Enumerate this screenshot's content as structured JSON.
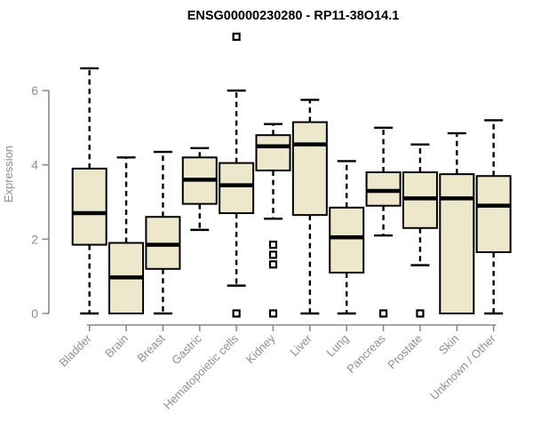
{
  "chart_data": {
    "type": "boxplot",
    "title": "ENSG00000230280 - RP11-38O14.1",
    "ylabel": "Expression",
    "xlabel": "",
    "ylim": [
      0,
      6
    ],
    "yticks": [
      0,
      2,
      4,
      6
    ],
    "grid": false,
    "legend": "none",
    "categories": [
      "Bladder",
      "Brain",
      "Breast",
      "Gastric",
      "Hematopoietic cells",
      "Kidney",
      "Liver",
      "Lung",
      "Pancreas",
      "Prostate",
      "Skin",
      "Unknown / Other"
    ],
    "series": [
      {
        "name": "Bladder",
        "whisker_low": 0,
        "q1": 1.85,
        "median": 2.7,
        "q3": 3.9,
        "whisker_high": 6.6,
        "outliers": []
      },
      {
        "name": "Brain",
        "whisker_low": 0,
        "q1": 0,
        "median": 0.97,
        "q3": 1.9,
        "whisker_high": 4.2,
        "outliers": []
      },
      {
        "name": "Breast",
        "whisker_low": 0,
        "q1": 1.2,
        "median": 1.85,
        "q3": 2.6,
        "whisker_high": 4.35,
        "outliers": []
      },
      {
        "name": "Gastric",
        "whisker_low": 2.25,
        "q1": 2.95,
        "median": 3.6,
        "q3": 4.2,
        "whisker_high": 4.45,
        "outliers": []
      },
      {
        "name": "Hematopoietic cells",
        "whisker_low": 0.75,
        "q1": 2.7,
        "median": 3.45,
        "q3": 4.05,
        "whisker_high": 6.0,
        "outliers": [
          7.45,
          0
        ]
      },
      {
        "name": "Kidney",
        "whisker_low": 2.55,
        "q1": 3.85,
        "median": 4.5,
        "q3": 4.8,
        "whisker_high": 5.1,
        "outliers": [
          1.85,
          1.58,
          1.32,
          0
        ]
      },
      {
        "name": "Liver",
        "whisker_low": 0,
        "q1": 2.65,
        "median": 4.55,
        "q3": 5.15,
        "whisker_high": 5.75,
        "outliers": []
      },
      {
        "name": "Lung",
        "whisker_low": 0,
        "q1": 1.1,
        "median": 2.05,
        "q3": 2.85,
        "whisker_high": 4.1,
        "outliers": []
      },
      {
        "name": "Pancreas",
        "whisker_low": 2.1,
        "q1": 2.9,
        "median": 3.3,
        "q3": 3.8,
        "whisker_high": 5.0,
        "outliers": [
          0
        ]
      },
      {
        "name": "Prostate",
        "whisker_low": 1.3,
        "q1": 2.3,
        "median": 3.1,
        "q3": 3.8,
        "whisker_high": 4.55,
        "outliers": [
          0
        ]
      },
      {
        "name": "Skin",
        "whisker_low": 0,
        "q1": 0,
        "median": 3.1,
        "q3": 3.75,
        "whisker_high": 4.85,
        "outliers": []
      },
      {
        "name": "Unknown / Other",
        "whisker_low": 0,
        "q1": 1.65,
        "median": 2.9,
        "q3": 3.7,
        "whisker_high": 5.2,
        "outliers": []
      }
    ]
  },
  "colors": {
    "box_fill": "#ede8cc",
    "box_stroke": "#000000",
    "median": "#000000",
    "whisker": "#000000",
    "axis_line": "#868686",
    "axis_text": "#8e8e8e",
    "title_text": "#000000",
    "background": "#ffffff"
  }
}
